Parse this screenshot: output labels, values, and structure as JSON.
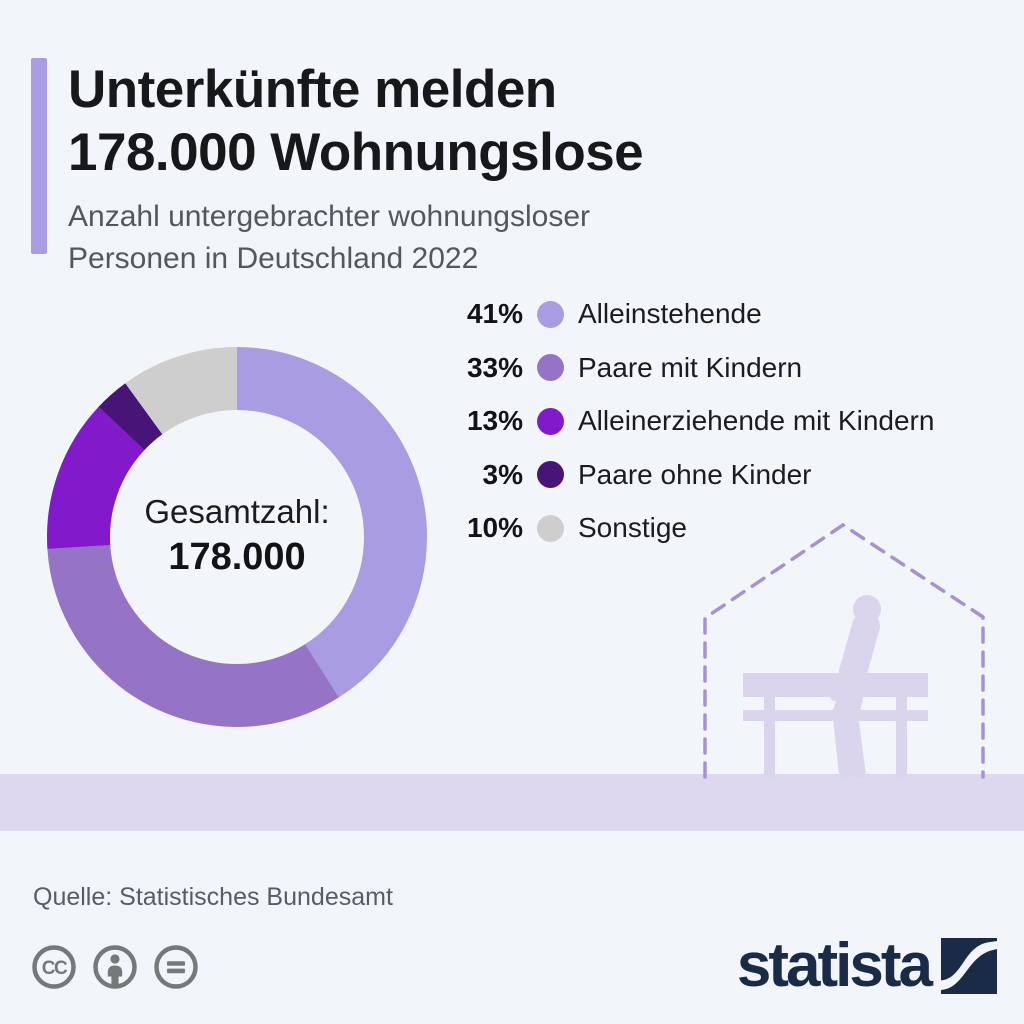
{
  "header": {
    "title_line1": "Unterkünfte melden",
    "title_line2": "178.000 Wohnungslose",
    "subtitle_line1": "Anzahl untergebrachter wohnungsloser",
    "subtitle_line2": "Personen in Deutschland 2022",
    "accent_color": "#ab9de4"
  },
  "chart_data": {
    "type": "pie",
    "donut": true,
    "title": "Anzahl untergebrachter wohnungsloser Personen in Deutschland 2022",
    "categories": [
      "Alleinstehende",
      "Paare mit Kindern",
      "Alleinerziehende mit Kindern",
      "Paare ohne Kinder",
      "Sonstige"
    ],
    "values": [
      41,
      33,
      13,
      3,
      10
    ],
    "unit": "%",
    "colors": [
      "#aa9ce2",
      "#9573c6",
      "#8219ca",
      "#471478",
      "#cfcecf"
    ],
    "start_angle_deg": 0,
    "direction": "clockwise",
    "legend_position": "right",
    "center_label": "Gesamtzahl:",
    "center_value": "178.000",
    "total": "178.000"
  },
  "legend": {
    "items": [
      {
        "pct": "41%",
        "label": "Alleinstehende",
        "color": "#aa9ce2"
      },
      {
        "pct": "33%",
        "label": "Paare mit Kindern",
        "color": "#9573c6"
      },
      {
        "pct": "13%",
        "label": "Alleinerziehende mit Kindern",
        "color": "#8219ca"
      },
      {
        "pct": "3%",
        "label": "Paare ohne Kinder",
        "color": "#471478"
      },
      {
        "pct": "10%",
        "label": "Sonstige",
        "color": "#cfcecf"
      }
    ]
  },
  "illustration": {
    "outline_color": "#a691d4",
    "silhouette_color": "#dbd4ed",
    "band_color": "#ddd8ef"
  },
  "footer": {
    "source": "Quelle: Statistisches Bundesamt",
    "icon_color": "#747979",
    "icons": [
      "cc-icon",
      "attribution-icon",
      "equals-icon"
    ],
    "brand": "statista",
    "brand_color": "#1a2b47"
  }
}
